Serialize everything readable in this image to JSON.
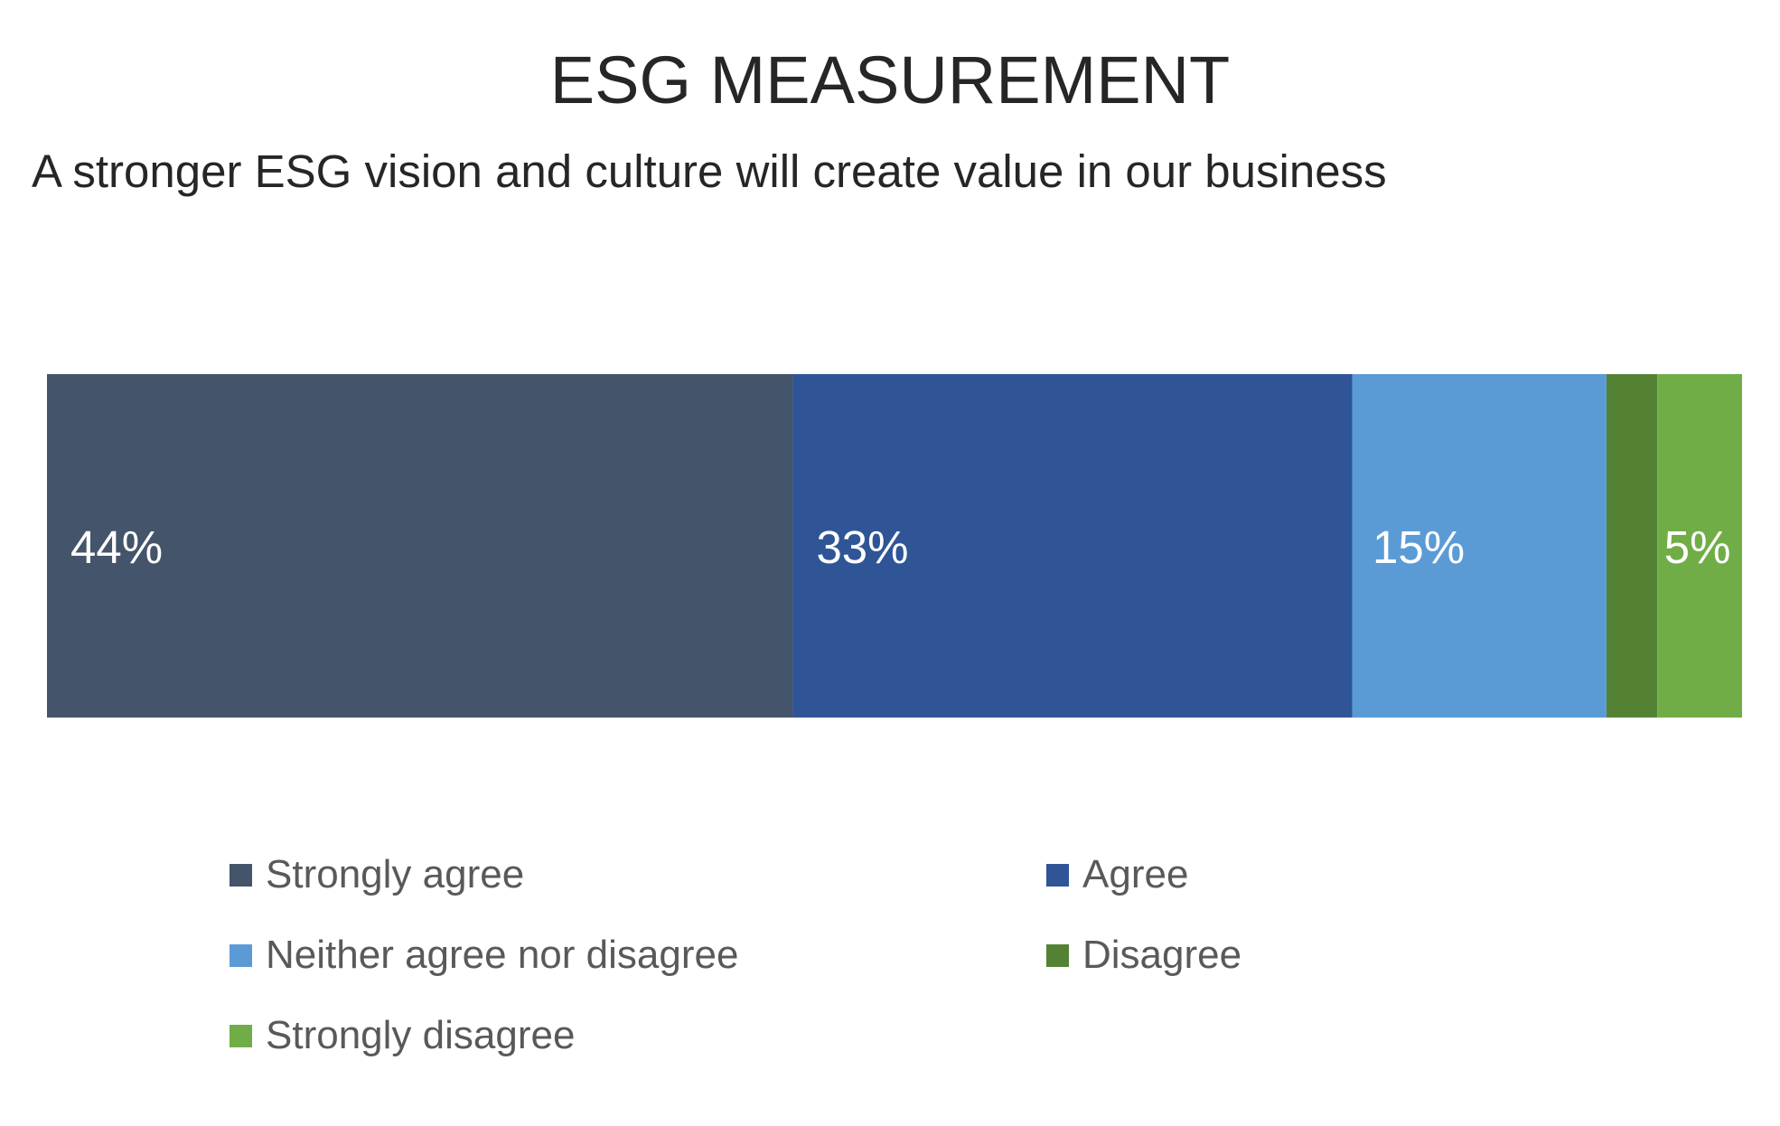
{
  "chart_data": {
    "type": "bar",
    "orientation": "horizontal-stacked-100",
    "title": "ESG MEASUREMENT",
    "subtitle": "A stronger ESG vision and culture will create value in our business",
    "unit": "%",
    "series": [
      {
        "name": "Strongly agree",
        "value": 44,
        "label": "44%",
        "color": "#44546A"
      },
      {
        "name": "Agree",
        "value": 33,
        "label": "33%",
        "color": "#2F5597"
      },
      {
        "name": "Neither agree nor disagree",
        "value": 15,
        "label": "15%",
        "color": "#5B9BD5"
      },
      {
        "name": "Disagree",
        "value": 3,
        "label": "",
        "color": "#548235"
      },
      {
        "name": "Strongly disagree",
        "value": 5,
        "label": "5%",
        "color": "#70AD47"
      }
    ],
    "legend_position": "bottom",
    "grid": false
  }
}
